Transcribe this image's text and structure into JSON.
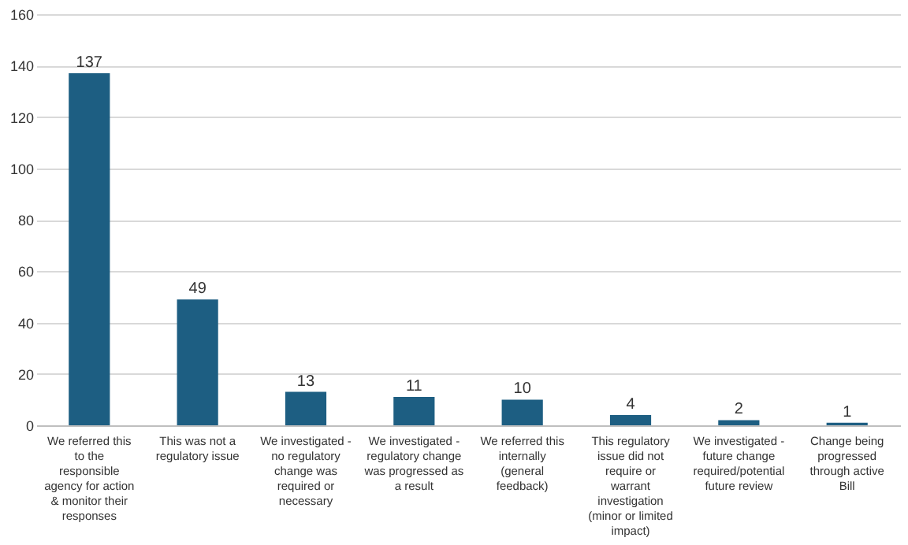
{
  "chart_data": {
    "type": "bar",
    "categories": [
      "We referred this to the responsible agency for action & monitor their responses",
      "This was not a regulatory issue",
      "We investigated - no regulatory change was required or necessary",
      "We investigated - regulatory change was progressed as a result",
      "We referred this internally (general feedback)",
      "This regulatory issue did not require or warrant investigation (minor or limited impact)",
      "We investigated - future change required/potential future review",
      "Change being progressed through active Bill"
    ],
    "values": [
      137,
      49,
      13,
      11,
      10,
      4,
      2,
      1
    ],
    "color": "#1d5e82",
    "ylim": [
      0,
      160
    ],
    "yticks": [
      0,
      20,
      40,
      60,
      80,
      100,
      120,
      140,
      160
    ],
    "grid": "y",
    "data_labels": true
  }
}
